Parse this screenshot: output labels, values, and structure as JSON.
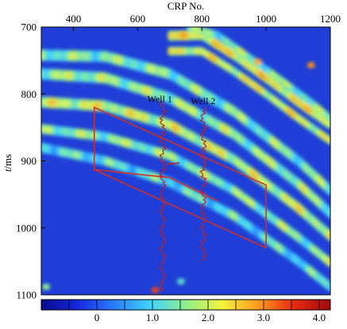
{
  "chart_data": {
    "type": "heatmap",
    "title": "",
    "xlabel": "CRP No.",
    "ylabel": "t/ms",
    "ylabel_italic_part": "t",
    "ylabel_rest": "/ms",
    "xlim": [
      300,
      1200
    ],
    "ylim": [
      700,
      1100
    ],
    "y_inverted": true,
    "x_ticks": [
      400,
      600,
      800,
      1000,
      1200
    ],
    "y_ticks": [
      700,
      800,
      900,
      1000,
      1100
    ],
    "grid": false,
    "colormap": [
      "#0a0a8c",
      "#1428dc",
      "#2a7bff",
      "#3fd3ff",
      "#8ef08a",
      "#f4f43c",
      "#ff9a1e",
      "#e62a12",
      "#a00a0a"
    ],
    "background_color": "#1f3fd8",
    "colorbar": {
      "range": [
        -1.0,
        4.2
      ],
      "ticks": [
        0,
        1.0,
        2.0,
        3.0,
        4.0
      ],
      "tick_labels": [
        "0",
        "1.0",
        "2.0",
        "3.0",
        "4.0"
      ],
      "placement": "bottom"
    },
    "reflectors": [
      {
        "x": [
          300,
          500,
          700,
          900,
          1100,
          1200
        ],
        "y": [
          742,
          744,
          770,
          826,
          900,
          944
        ],
        "amplitude": 1.6,
        "width_ms": 9
      },
      {
        "x": [
          300,
          500,
          700,
          900,
          1100,
          1200
        ],
        "y": [
          770,
          776,
          806,
          860,
          934,
          978
        ],
        "amplitude": 1.8,
        "width_ms": 9
      },
      {
        "x": [
          300,
          500,
          700,
          900,
          1100,
          1200
        ],
        "y": [
          812,
          818,
          846,
          898,
          970,
          1012
        ],
        "amplitude": 2.2,
        "width_ms": 9
      },
      {
        "x": [
          300,
          500,
          700,
          900,
          1100,
          1200
        ],
        "y": [
          852,
          864,
          892,
          944,
          1014,
          1052
        ],
        "amplitude": 1.7,
        "width_ms": 8
      },
      {
        "x": [
          300,
          500,
          700,
          900,
          1100,
          1200
        ],
        "y": [
          880,
          900,
          932,
          982,
          1050,
          1088
        ],
        "amplitude": 1.2,
        "width_ms": 8
      },
      {
        "x": [
          700,
          800,
          900,
          1000,
          1100,
          1200
        ],
        "y": [
          713,
          712,
          742,
          776,
          812,
          846
        ],
        "amplitude": 2.6,
        "width_ms": 8
      },
      {
        "x": [
          700,
          800,
          900,
          1000,
          1100,
          1200
        ],
        "y": [
          736,
          736,
          766,
          800,
          836,
          870
        ],
        "amplitude": 2.4,
        "width_ms": 7
      },
      {
        "x": [
          760,
          850,
          950,
          1050,
          1150,
          1200
        ],
        "y": [
          700,
          712,
          746,
          780,
          816,
          836
        ],
        "amplitude": 1.6,
        "width_ms": 6
      }
    ],
    "hotspots": [
      {
        "x": 655,
        "y": 1093,
        "amplitude": 3.4
      },
      {
        "x": 1140,
        "y": 757,
        "amplitude": 3.0
      },
      {
        "x": 975,
        "y": 752,
        "amplitude": 2.8
      },
      {
        "x": 315,
        "y": 1088,
        "amplitude": 1.6
      },
      {
        "x": 735,
        "y": 1080,
        "amplitude": 1.2
      }
    ],
    "wells": [
      {
        "name": "Well 1",
        "x": 678,
        "t_top": 810,
        "t_bottom": 1095,
        "label_x": 630,
        "label_y": 812
      },
      {
        "name": "Well 2",
        "x": 805,
        "t_top": 820,
        "t_bottom": 1050,
        "label_x": 765,
        "label_y": 815
      }
    ],
    "well_annotations": [
      {
        "x": 730,
        "y": 905
      }
    ],
    "region_outline": {
      "color": "#d03028",
      "points": [
        [
          465,
          820
        ],
        [
          1000,
          936
        ],
        [
          1000,
          1030
        ],
        [
          465,
          913
        ]
      ]
    },
    "section_line": {
      "color": "#d03028",
      "points": [
        [
          465,
          913
        ],
        [
          700,
          925
        ],
        [
          850,
          960
        ]
      ]
    }
  }
}
